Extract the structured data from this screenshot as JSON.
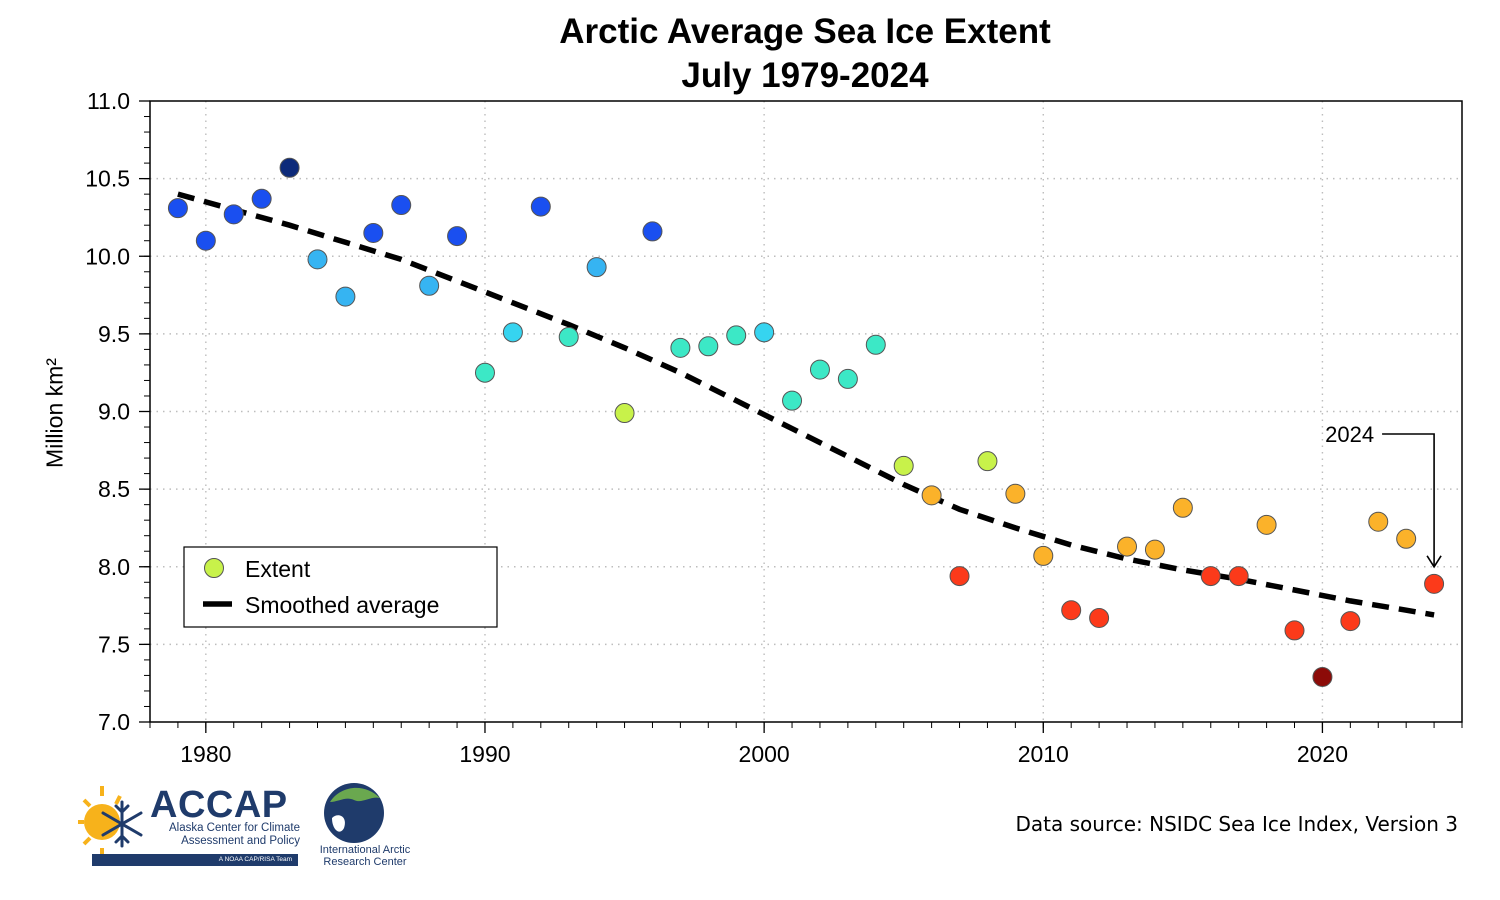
{
  "chart_data": {
    "type": "scatter",
    "title": "Arctic Average Sea Ice Extent",
    "subtitle": "July 1979-2024",
    "xlabel": "",
    "ylabel": "Million km²",
    "xlim": [
      1978,
      2025
    ],
    "ylim": [
      7.0,
      11.0
    ],
    "x_ticks": [
      1980,
      1990,
      2000,
      2010,
      2020
    ],
    "y_ticks": [
      "7.0",
      "7.5",
      "8.0",
      "8.5",
      "9.0",
      "9.5",
      "10.0",
      "10.5",
      "11.0"
    ],
    "grid": "dotted",
    "legend": {
      "placement": "lower-left",
      "entries": [
        "Extent",
        "Smoothed average"
      ]
    },
    "series": [
      {
        "name": "Extent",
        "kind": "points",
        "x": [
          1979,
          1980,
          1981,
          1982,
          1983,
          1984,
          1985,
          1986,
          1987,
          1988,
          1989,
          1990,
          1991,
          1992,
          1993,
          1994,
          1995,
          1996,
          1997,
          1998,
          1999,
          2000,
          2001,
          2002,
          2003,
          2004,
          2005,
          2006,
          2007,
          2008,
          2009,
          2010,
          2011,
          2012,
          2013,
          2014,
          2015,
          2016,
          2017,
          2018,
          2019,
          2020,
          2021,
          2022,
          2023,
          2024
        ],
        "values": [
          10.31,
          10.1,
          10.27,
          10.37,
          10.57,
          9.98,
          9.74,
          10.15,
          10.33,
          9.81,
          10.13,
          9.25,
          9.51,
          10.32,
          9.48,
          9.93,
          8.99,
          10.16,
          9.41,
          9.42,
          9.49,
          9.51,
          9.07,
          9.27,
          9.21,
          9.43,
          8.65,
          8.46,
          7.94,
          8.68,
          8.47,
          8.07,
          7.72,
          7.67,
          8.13,
          8.11,
          8.38,
          7.94,
          7.94,
          8.27,
          7.59,
          7.29,
          7.65,
          8.29,
          8.18,
          7.89
        ],
        "colors": [
          "#1a4ff0",
          "#1a4ff0",
          "#1a4ff0",
          "#1a4ff0",
          "#0d2a7a",
          "#36b4f2",
          "#36b4f2",
          "#1a4ff0",
          "#1a4ff0",
          "#36b4f2",
          "#1a4ff0",
          "#3ce8c6",
          "#36d4f0",
          "#1a4ff0",
          "#3ce8c6",
          "#36b4f2",
          "#c8f24a",
          "#1a4ff0",
          "#3ce8c6",
          "#3ce8c6",
          "#3ce8c6",
          "#36d4f0",
          "#3ce8c6",
          "#3ce8c6",
          "#3ce8c6",
          "#3ce8c6",
          "#c8f24a",
          "#fbb22a",
          "#fc3a1a",
          "#c8f24a",
          "#fbb22a",
          "#fbb22a",
          "#fc3a1a",
          "#fc3a1a",
          "#fbb22a",
          "#fbb22a",
          "#fbb22a",
          "#fc3a1a",
          "#fc3a1a",
          "#fbb22a",
          "#fc3a1a",
          "#8c0b08",
          "#fc3a1a",
          "#fbb22a",
          "#fbb22a",
          "#fc3a1a"
        ]
      },
      {
        "name": "Smoothed average",
        "kind": "dashed-line",
        "x": [
          1979,
          1981,
          1983,
          1985,
          1987,
          1989,
          1991,
          1993,
          1995,
          1997,
          1999,
          2001,
          2003,
          2005,
          2007,
          2009,
          2011,
          2013,
          2015,
          2017,
          2019,
          2021,
          2023,
          2024
        ],
        "values": [
          10.4,
          10.3,
          10.2,
          10.09,
          9.98,
          9.84,
          9.7,
          9.56,
          9.41,
          9.25,
          9.07,
          8.89,
          8.71,
          8.53,
          8.37,
          8.25,
          8.14,
          8.05,
          7.98,
          7.92,
          7.85,
          7.78,
          7.72,
          7.69
        ]
      }
    ],
    "annotations": [
      {
        "text": "2024",
        "target_x": 2024,
        "target_y": 7.89
      }
    ]
  },
  "footer": {
    "source": "Data source: NSIDC Sea Ice Index, Version 3",
    "accap_logo": {
      "name": "ACCAP",
      "line1": "Alaska Center for Climate",
      "line2": "Assessment and Policy",
      "bar": "A NOAA CAP/RISA Team"
    },
    "iarc_logo": {
      "line1": "International Arctic",
      "line2": "Research Center"
    }
  }
}
